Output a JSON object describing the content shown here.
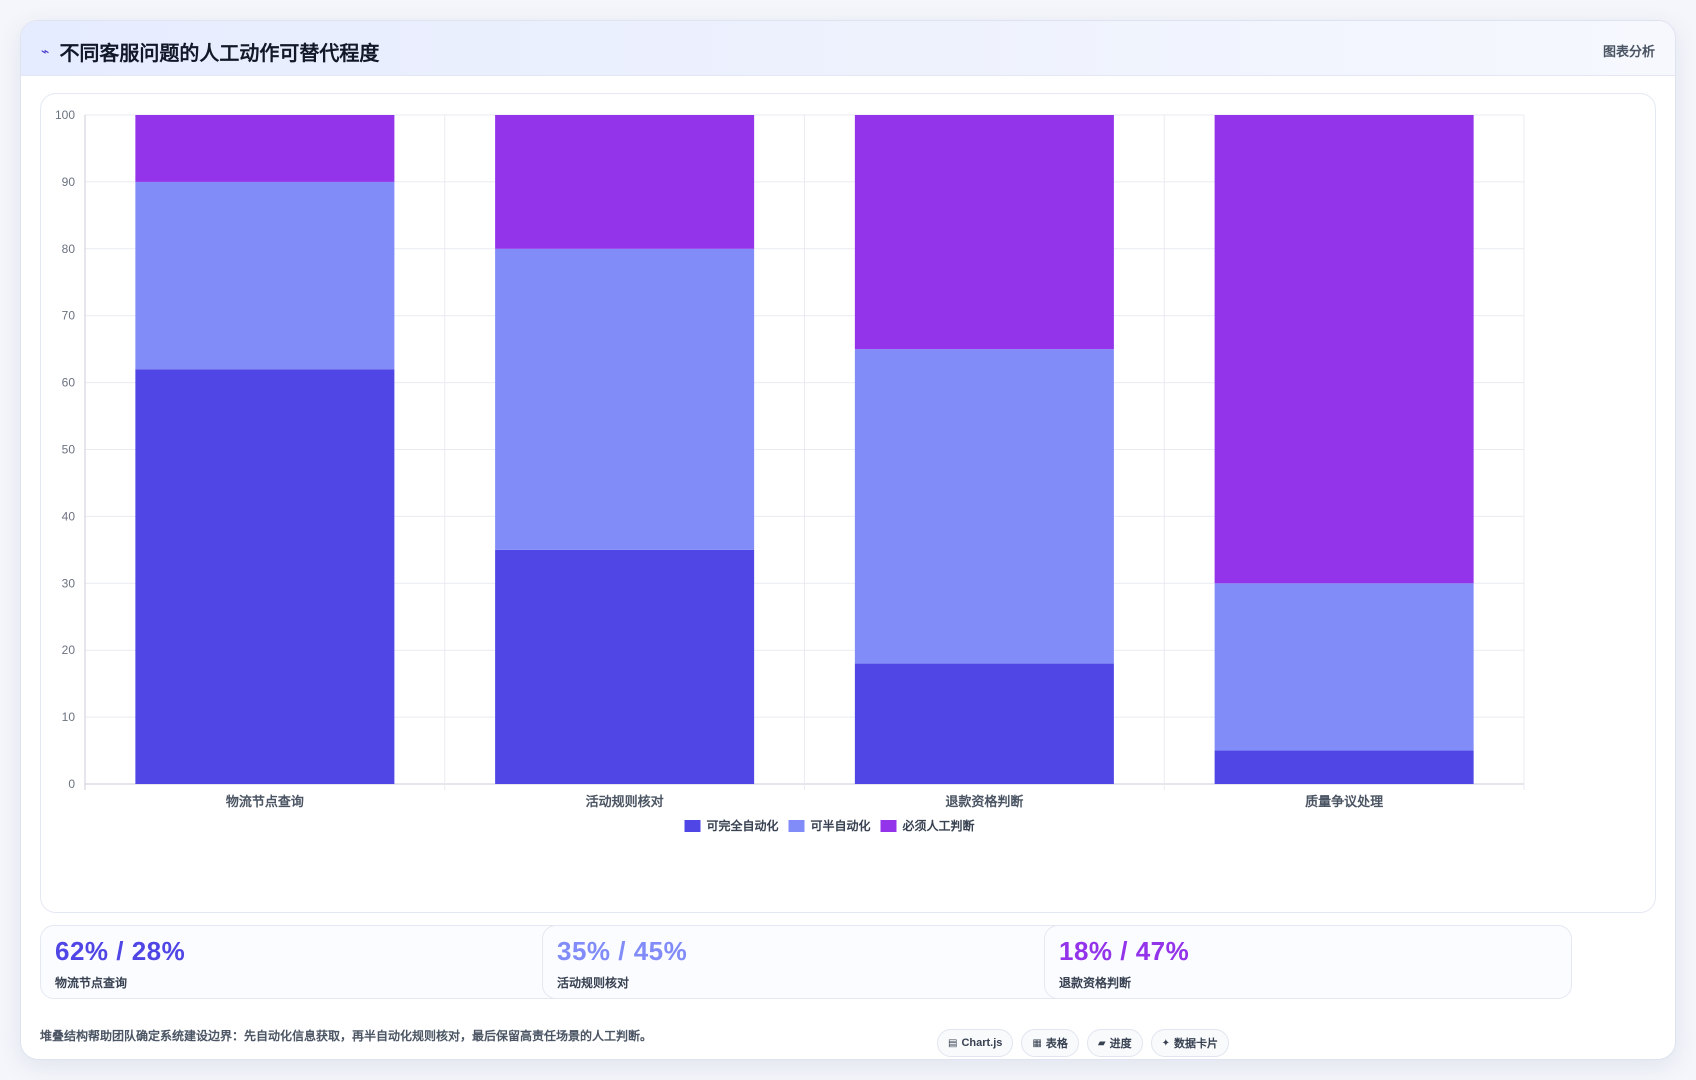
{
  "header": {
    "icon": "trend-icon",
    "title": "不同客服问题的人工动作可替代程度",
    "tag": "图表分析"
  },
  "colors": {
    "full_auto": "#4f46e5",
    "semi_auto": "#818cf8",
    "manual": "#9333ea"
  },
  "chart_data": {
    "type": "bar",
    "stacked": true,
    "categories": [
      "物流节点查询",
      "活动规则核对",
      "退款资格判断",
      "质量争议处理"
    ],
    "series": [
      {
        "name": "可完全自动化",
        "values": [
          62,
          35,
          18,
          5
        ],
        "color": "#4f46e5"
      },
      {
        "name": "可半自动化",
        "values": [
          28,
          45,
          47,
          25
        ],
        "color": "#818cf8"
      },
      {
        "name": "必须人工判断",
        "values": [
          10,
          20,
          35,
          70
        ],
        "color": "#9333ea"
      }
    ],
    "ylim": [
      0,
      100
    ],
    "yticks": [
      "0",
      "10",
      "20",
      "30",
      "40",
      "50",
      "60",
      "70",
      "80",
      "90",
      "100"
    ],
    "grid": true,
    "legend": "bottom"
  },
  "stats": [
    {
      "value": "62% / 28%",
      "label": "物流节点查询",
      "color": "#4f46e5"
    },
    {
      "value": "35% / 45%",
      "label": "活动规则核对",
      "color": "#818cf8"
    },
    {
      "value": "18% / 47%",
      "label": "退款资格判断",
      "color": "#9333ea"
    }
  ],
  "footer": {
    "note": "堆叠结构帮助团队确定系统建设边界：先自动化信息获取，再半自动化规则核对，最后保留高责任场景的人工判断。",
    "chips": [
      {
        "icon": "chart-icon",
        "glyph": "▤",
        "label": "Chart.js"
      },
      {
        "icon": "table-icon",
        "glyph": "▦",
        "label": "表格"
      },
      {
        "icon": "progress-icon",
        "glyph": "▰",
        "label": "进度"
      },
      {
        "icon": "sparkle-icon",
        "glyph": "✦",
        "label": "数据卡片"
      }
    ]
  }
}
